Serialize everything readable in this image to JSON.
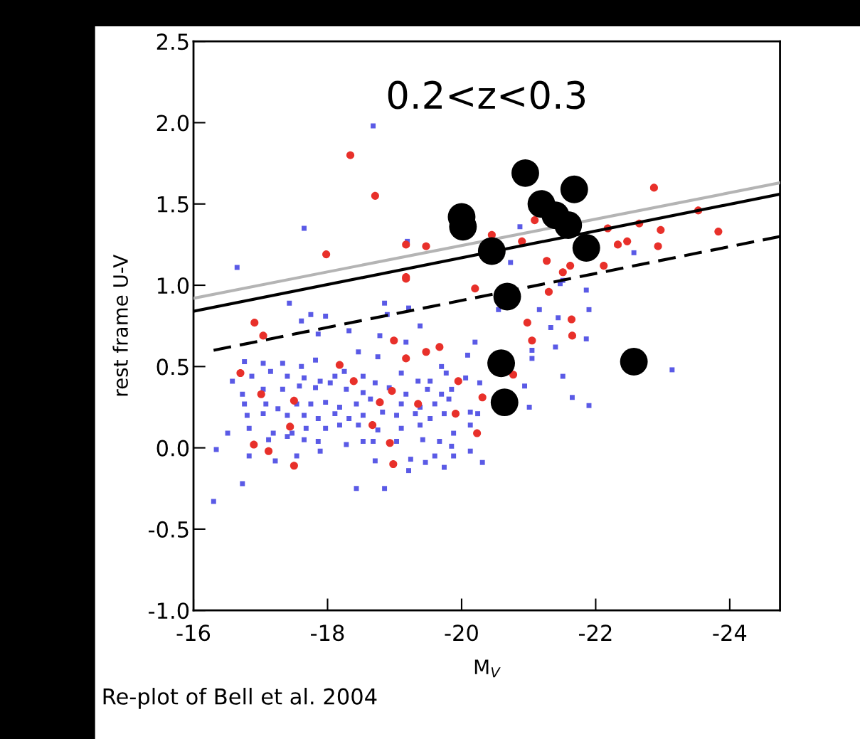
{
  "chart_data": {
    "type": "scatter",
    "xlabel": "M$_{V}$",
    "ylabel": "rest frame U-V",
    "annotations": [
      "0.2<z<0.3",
      "Re-plot of Bell et al. 2004"
    ],
    "xlim": [
      -16,
      -24.75
    ],
    "ylim": [
      -1.0,
      2.5
    ],
    "xticks": [
      -16,
      -18,
      -20,
      -22,
      -24
    ],
    "yticks": [
      {
        "value": -1.0,
        "label": "-1.0"
      },
      {
        "value": -0.5,
        "label": "-0.5"
      },
      {
        "value": 0.0,
        "label": "0.0"
      },
      {
        "value": 0.5,
        "label": "0.5"
      },
      {
        "value": 1.0,
        "label": "1.0"
      },
      {
        "value": 1.5,
        "label": "1.5"
      },
      {
        "value": 2.0,
        "label": "2.0"
      },
      {
        "value": 2.5,
        "label": "2.5"
      }
    ],
    "grid": false,
    "legend": false,
    "series": [
      {
        "type": "scatter",
        "marker": "square",
        "color": "#5a5ae6",
        "x": [
          -17.43,
          -17.75,
          -17.61,
          -17.97,
          -18.32,
          -17.86,
          -18.78,
          -18.85,
          -19.21,
          -19.38,
          -20.2,
          -20.09,
          -18.89,
          -16.76,
          -17.04,
          -17.33,
          -17.61,
          -17.82,
          -18.46,
          -18.75,
          -19.17,
          -19.7,
          -19.77,
          -16.58,
          -16.87,
          -17.15,
          -17.4,
          -17.65,
          -17.89,
          -18.11,
          -18.25,
          -18.53,
          -18.71,
          -19.1,
          -19.35,
          -19.53,
          -20.06,
          -20.27,
          -16.73,
          -17.04,
          -17.33,
          -17.58,
          -17.82,
          -18.04,
          -18.28,
          -18.53,
          -18.92,
          -19.17,
          -19.49,
          -19.7,
          -19.85,
          -16.76,
          -17.08,
          -17.26,
          -17.54,
          -17.75,
          -17.97,
          -18.18,
          -18.43,
          -18.64,
          -18.82,
          -19.1,
          -19.38,
          -19.6,
          -19.81,
          -20.13,
          -16.8,
          -17.04,
          -17.4,
          -17.65,
          -17.86,
          -18.11,
          -18.32,
          -18.53,
          -19.03,
          -19.31,
          -19.53,
          -19.74,
          -20.24,
          -16.51,
          -16.83,
          -17.19,
          -17.47,
          -17.68,
          -17.97,
          -18.18,
          -18.46,
          -18.75,
          -19.1,
          -19.38,
          -19.88,
          -20.13,
          -17.12,
          -17.4,
          -17.65,
          -17.86,
          -18.28,
          -18.53,
          -18.68,
          -19.03,
          -19.42,
          -19.67,
          -19.85,
          -16.34,
          -16.83,
          -17.22,
          -17.54,
          -17.89,
          -18.71,
          -19.24,
          -19.6,
          -19.88,
          -20.13,
          -20.31,
          -16.73,
          -18.43,
          -18.85,
          -16.3,
          -19.21,
          -19.46,
          -19.74,
          -21.86,
          -21.47,
          -21.16,
          -20.55,
          -21.9,
          -21.33,
          -21.44,
          -21.86,
          -21.4,
          -21.05,
          -21.05,
          -21.51,
          -20.94,
          -21.65,
          -21.9,
          -21.01,
          -23.14,
          -20.87,
          -22.57,
          -20.73,
          -21.51,
          -18.68,
          -17.65,
          -16.65,
          -19.19
        ],
        "values": [
          0.89,
          0.82,
          0.78,
          0.81,
          0.72,
          0.7,
          0.69,
          0.89,
          0.86,
          0.75,
          0.65,
          0.57,
          0.82,
          0.53,
          0.52,
          0.52,
          0.5,
          0.54,
          0.59,
          0.56,
          0.65,
          0.5,
          0.46,
          0.41,
          0.44,
          0.47,
          0.44,
          0.43,
          0.41,
          0.44,
          0.47,
          0.44,
          0.4,
          0.46,
          0.41,
          0.41,
          0.43,
          0.4,
          0.33,
          0.36,
          0.36,
          0.38,
          0.37,
          0.4,
          0.36,
          0.34,
          0.37,
          0.33,
          0.36,
          0.33,
          0.36,
          0.27,
          0.27,
          0.24,
          0.27,
          0.27,
          0.28,
          0.25,
          0.27,
          0.3,
          0.22,
          0.27,
          0.25,
          0.27,
          0.3,
          0.22,
          0.2,
          0.21,
          0.2,
          0.2,
          0.18,
          0.21,
          0.18,
          0.2,
          0.2,
          0.21,
          0.18,
          0.21,
          0.21,
          0.09,
          0.12,
          0.09,
          0.09,
          0.12,
          0.12,
          0.14,
          0.14,
          0.11,
          0.12,
          0.14,
          0.09,
          0.14,
          0.05,
          0.07,
          0.05,
          0.04,
          0.02,
          0.04,
          0.04,
          0.04,
          0.05,
          0.04,
          0.01,
          -0.01,
          -0.05,
          -0.08,
          -0.05,
          -0.02,
          -0.08,
          -0.07,
          -0.05,
          -0.05,
          -0.02,
          -0.09,
          -0.22,
          -0.25,
          -0.25,
          -0.33,
          -0.14,
          -0.09,
          -0.12,
          0.97,
          1.01,
          0.85,
          0.85,
          0.85,
          0.74,
          0.8,
          0.67,
          0.62,
          0.6,
          0.55,
          0.44,
          0.38,
          0.31,
          0.26,
          0.25,
          0.48,
          1.36,
          1.2,
          1.14,
          1.03,
          1.98,
          1.35,
          1.11,
          1.27
        ]
      },
      {
        "type": "scatter",
        "marker": "circle",
        "color": "#e8302a",
        "x": [
          -18.34,
          -18.71,
          -17.98,
          -19.17,
          -19.17,
          -19.47,
          -16.91,
          -17.04,
          -16.7,
          -17.01,
          -17.5,
          -17.44,
          -16.9,
          -17.12,
          -17.5,
          -18.18,
          -18.39,
          -18.99,
          -19.17,
          -19.47,
          -19.67,
          -18.96,
          -18.78,
          -19.35,
          -18.67,
          -18.93,
          -18.98,
          -19.95,
          -19.91,
          -20.23,
          -20.31,
          -19.17,
          -20.2,
          -21.3,
          -20.98,
          -21.64,
          -21.05,
          -21.65,
          -20.77,
          -22.87,
          -23.53,
          -23.83,
          -22.97,
          -22.93,
          -22.65,
          -22.18,
          -22.33,
          -22.47,
          -22.12,
          -21.62,
          -21.51,
          -21.27,
          -20.9,
          -20.45,
          -21.09
        ],
        "values": [
          1.8,
          1.55,
          1.19,
          1.25,
          1.04,
          1.24,
          0.77,
          0.69,
          0.46,
          0.33,
          0.29,
          0.13,
          0.02,
          -0.02,
          -0.11,
          0.51,
          0.41,
          0.66,
          0.55,
          0.59,
          0.62,
          0.35,
          0.28,
          0.27,
          0.14,
          0.03,
          -0.1,
          0.41,
          0.21,
          0.09,
          0.31,
          1.05,
          0.98,
          0.96,
          0.77,
          0.79,
          0.66,
          0.69,
          0.45,
          1.6,
          1.46,
          1.33,
          1.34,
          1.24,
          1.38,
          1.35,
          1.25,
          1.27,
          1.12,
          1.12,
          1.08,
          1.15,
          1.27,
          1.31,
          1.4
        ]
      },
      {
        "type": "line",
        "color": "#b4b4b4",
        "line_style": "solid",
        "x": [
          -16,
          -24.75
        ],
        "values": [
          0.92,
          1.63
        ]
      },
      {
        "type": "line",
        "color": "#000000",
        "line_style": "solid",
        "x": [
          -16,
          -24.75
        ],
        "values": [
          0.84,
          1.56
        ]
      },
      {
        "type": "line",
        "color": "#000000",
        "line_style": "dashed",
        "x": [
          -16.3,
          -24.75
        ],
        "values": [
          0.6,
          1.3
        ]
      },
      {
        "type": "scatter",
        "marker": "circle",
        "color": "#000000",
        "x": [
          -20.0,
          -20.02,
          -20.95,
          -21.19,
          -21.4,
          -21.59,
          -21.68,
          -21.86,
          -20.45,
          -20.68,
          -20.59,
          -20.64,
          -22.57
        ],
        "values": [
          1.42,
          1.36,
          1.69,
          1.5,
          1.43,
          1.37,
          1.59,
          1.23,
          1.21,
          0.93,
          0.52,
          0.28,
          0.53
        ]
      }
    ]
  }
}
